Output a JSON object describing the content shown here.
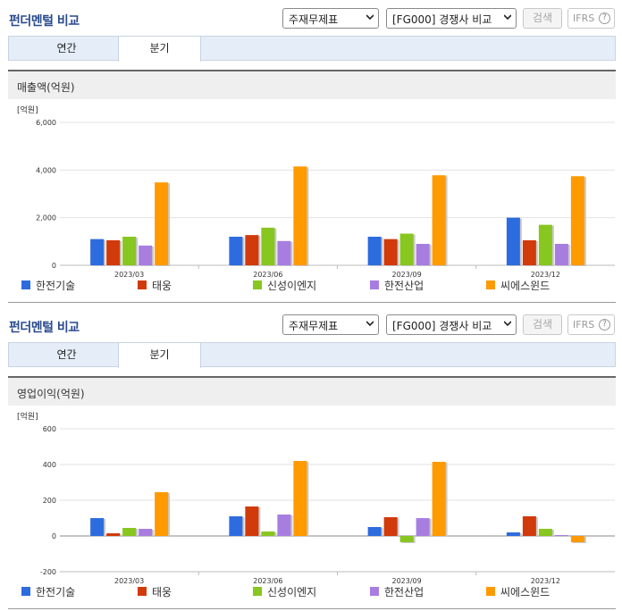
{
  "panels": [
    {
      "title": "펀더멘털 비교",
      "select1": "주재무제표",
      "select2": "[FG000] 경쟁사 비교",
      "search_label": "검색",
      "ifrs_label": "IFRS",
      "tabs": [
        "연간",
        "분기"
      ],
      "section_title": "매출액(억원)"
    },
    {
      "title": "펀더멘털 비교",
      "select1": "주재무제표",
      "select2": "[FG000] 경쟁사 비교",
      "search_label": "검색",
      "ifrs_label": "IFRS",
      "tabs": [
        "연간",
        "분기"
      ],
      "section_title": "영업이익(억원)"
    }
  ],
  "colors": {
    "series": [
      "#2d6cdf",
      "#d13a0b",
      "#88c620",
      "#a77ee0",
      "#ff9a00"
    ]
  },
  "chart_data": [
    {
      "type": "bar",
      "unit_label": "[억원]",
      "categories": [
        "2023/03",
        "2023/06",
        "2023/09",
        "2023/12"
      ],
      "ylim": [
        0,
        6000
      ],
      "yticks": [
        "6,000",
        "4,000",
        "2,000",
        "0"
      ],
      "ytick_values": [
        6000,
        4000,
        2000,
        0
      ],
      "series": [
        {
          "name": "한전기술",
          "values": [
            1100,
            1200,
            1200,
            2000
          ]
        },
        {
          "name": "태웅",
          "values": [
            1050,
            1270,
            1100,
            1050
          ]
        },
        {
          "name": "신성이엔지",
          "values": [
            1200,
            1580,
            1330,
            1700
          ]
        },
        {
          "name": "한전산업",
          "values": [
            830,
            1020,
            900,
            900
          ]
        },
        {
          "name": "씨에스윈드",
          "values": [
            3480,
            4150,
            3780,
            3740
          ]
        }
      ]
    },
    {
      "type": "bar",
      "unit_label": "[억원]",
      "categories": [
        "2023/03",
        "2023/06",
        "2023/09",
        "2023/12"
      ],
      "ylim": [
        -200,
        600
      ],
      "yticks": [
        "600",
        "400",
        "200",
        "0",
        "-200"
      ],
      "ytick_values": [
        600,
        400,
        200,
        0,
        -200
      ],
      "series": [
        {
          "name": "한전기술",
          "values": [
            100,
            110,
            50,
            20
          ]
        },
        {
          "name": "태웅",
          "values": [
            15,
            165,
            105,
            110
          ]
        },
        {
          "name": "신성이엔지",
          "values": [
            45,
            25,
            -35,
            40
          ]
        },
        {
          "name": "한전산업",
          "values": [
            40,
            120,
            100,
            5
          ]
        },
        {
          "name": "씨에스윈드",
          "values": [
            245,
            420,
            415,
            -35
          ]
        }
      ]
    }
  ]
}
